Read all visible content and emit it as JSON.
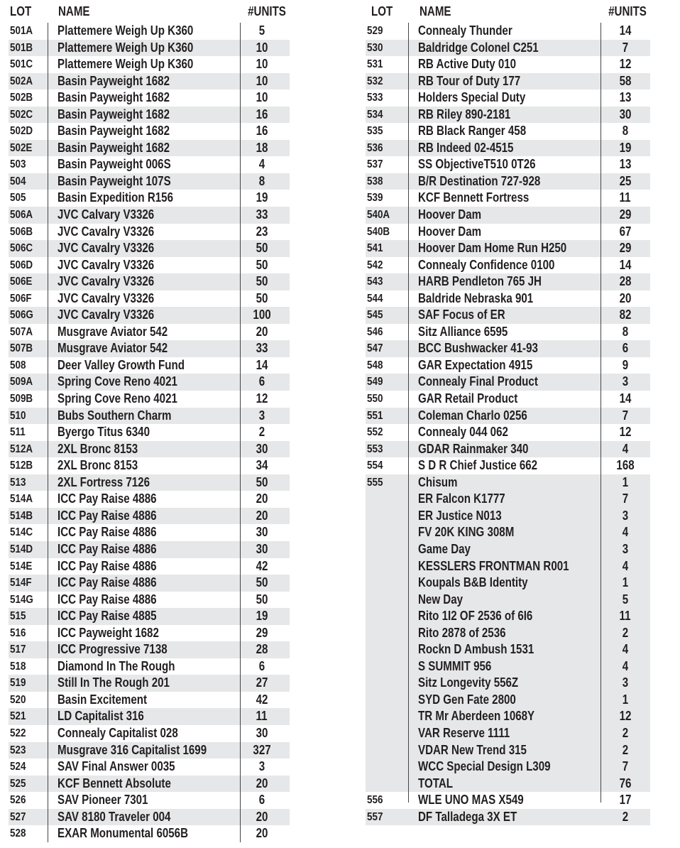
{
  "headers": {
    "lot": "LOT",
    "name": "NAME",
    "units": "#UNITS"
  },
  "left": {
    "rows": [
      {
        "lot": "501A",
        "name": "Plattemere Weigh Up K360",
        "units": "5"
      },
      {
        "lot": "501B",
        "name": "Plattemere Weigh Up K360",
        "units": "10"
      },
      {
        "lot": "501C",
        "name": "Plattemere Weigh Up K360",
        "units": "10"
      },
      {
        "lot": "502A",
        "name": "Basin Payweight 1682",
        "units": "10"
      },
      {
        "lot": "502B",
        "name": "Basin Payweight 1682",
        "units": "10"
      },
      {
        "lot": "502C",
        "name": "Basin Payweight 1682",
        "units": "16"
      },
      {
        "lot": "502D",
        "name": "Basin Payweight 1682",
        "units": "16"
      },
      {
        "lot": "502E",
        "name": "Basin Payweight 1682",
        "units": "18"
      },
      {
        "lot": "503",
        "name": "Basin Payweight 006S",
        "units": "4"
      },
      {
        "lot": "504",
        "name": "Basin Payweight 107S",
        "units": "8"
      },
      {
        "lot": "505",
        "name": "Basin Expedition R156",
        "units": "19"
      },
      {
        "lot": "506A",
        "name": "JVC Calvary V3326",
        "units": "33"
      },
      {
        "lot": "506B",
        "name": "JVC Cavalry V3326",
        "units": "23"
      },
      {
        "lot": "506C",
        "name": "JVC Cavalry V3326",
        "units": "50"
      },
      {
        "lot": "506D",
        "name": "JVC Cavalry V3326",
        "units": "50"
      },
      {
        "lot": "506E",
        "name": "JVC Cavalry V3326",
        "units": "50"
      },
      {
        "lot": "506F",
        "name": "JVC Cavalry V3326",
        "units": "50"
      },
      {
        "lot": "506G",
        "name": "JVC Cavalry V3326",
        "units": "100"
      },
      {
        "lot": "507A",
        "name": "Musgrave Aviator 542",
        "units": "20"
      },
      {
        "lot": "507B",
        "name": "Musgrave Aviator 542",
        "units": "33"
      },
      {
        "lot": "508",
        "name": "Deer Valley Growth Fund",
        "units": "14"
      },
      {
        "lot": "509A",
        "name": "Spring Cove Reno 4021",
        "units": "6"
      },
      {
        "lot": "509B",
        "name": "Spring Cove Reno 4021",
        "units": "12"
      },
      {
        "lot": "510",
        "name": "Bubs Southern Charm",
        "units": "3"
      },
      {
        "lot": "511",
        "name": "Byergo Titus 6340",
        "units": "2"
      },
      {
        "lot": "512A",
        "name": "2XL Bronc 8153",
        "units": "30"
      },
      {
        "lot": "512B",
        "name": "2XL Bronc 8153",
        "units": "34"
      },
      {
        "lot": "513",
        "name": "2XL Fortress 7126",
        "units": "50"
      },
      {
        "lot": "514A",
        "name": "ICC Pay Raise 4886",
        "units": "20"
      },
      {
        "lot": "514B",
        "name": "ICC Pay Raise 4886",
        "units": "20"
      },
      {
        "lot": "514C",
        "name": "ICC Pay Raise 4886",
        "units": "30"
      },
      {
        "lot": "514D",
        "name": "ICC Pay Raise 4886",
        "units": "30"
      },
      {
        "lot": "514E",
        "name": "ICC Pay Raise 4886",
        "units": "42"
      },
      {
        "lot": "514F",
        "name": "ICC Pay Raise 4886",
        "units": "50"
      },
      {
        "lot": "514G",
        "name": "ICC Pay Raise 4886",
        "units": "50"
      },
      {
        "lot": "515",
        "name": "ICC Pay Raise 4885",
        "units": "19"
      },
      {
        "lot": "516",
        "name": "ICC Payweight 1682",
        "units": "29"
      },
      {
        "lot": "517",
        "name": "ICC Progressive 7138",
        "units": "28"
      },
      {
        "lot": "518",
        "name": "Diamond In The Rough",
        "units": "6"
      },
      {
        "lot": "519",
        "name": "Still In The Rough 201",
        "units": "27"
      },
      {
        "lot": "520",
        "name": "Basin Excitement",
        "units": "42"
      },
      {
        "lot": "521",
        "name": "LD Capitalist 316",
        "units": "11"
      },
      {
        "lot": "522",
        "name": "Connealy Capitalist 028",
        "units": "30"
      },
      {
        "lot": "523",
        "name": "Musgrave 316 Capitalist 1699",
        "units": "327"
      },
      {
        "lot": "524",
        "name": "SAV Final Answer 0035",
        "units": "3"
      },
      {
        "lot": "525",
        "name": "KCF Bennett Absolute",
        "units": "20"
      },
      {
        "lot": "526",
        "name": "SAV Pioneer 7301",
        "units": "6"
      },
      {
        "lot": "527",
        "name": "SAV 8180 Traveler 004",
        "units": "20"
      },
      {
        "lot": "528",
        "name": "EXAR Monumental 6056B",
        "units": "20"
      }
    ]
  },
  "right": {
    "rows": [
      {
        "lot": "529",
        "name": "Connealy Thunder",
        "units": "14"
      },
      {
        "lot": "530",
        "name": "Baldridge Colonel C251",
        "units": "7"
      },
      {
        "lot": "531",
        "name": "RB Active Duty 010",
        "units": "12"
      },
      {
        "lot": "532",
        "name": "RB Tour of Duty 177",
        "units": "58"
      },
      {
        "lot": "533",
        "name": "Holders Special Duty",
        "units": "13"
      },
      {
        "lot": "534",
        "name": "RB Riley 890-2181",
        "units": "30"
      },
      {
        "lot": "535",
        "name": "RB Black Ranger 458",
        "units": "8"
      },
      {
        "lot": "536",
        "name": "RB Indeed 02-4515",
        "units": "19"
      },
      {
        "lot": "537",
        "name": "SS ObjectiveT510 0T26",
        "units": "13"
      },
      {
        "lot": "538",
        "name": "B/R Destination 727-928",
        "units": "25"
      },
      {
        "lot": "539",
        "name": "KCF Bennett Fortress",
        "units": "11"
      },
      {
        "lot": "540A",
        "name": "Hoover Dam",
        "units": "29"
      },
      {
        "lot": "540B",
        "name": "Hoover Dam",
        "units": "67"
      },
      {
        "lot": "541",
        "name": "Hoover Dam Home Run H250",
        "units": "29"
      },
      {
        "lot": "542",
        "name": "Connealy Confidence 0100",
        "units": "14"
      },
      {
        "lot": "543",
        "name": "HARB Pendleton 765 JH",
        "units": "28"
      },
      {
        "lot": "544",
        "name": "Baldride Nebraska 901",
        "units": "20"
      },
      {
        "lot": "545",
        "name": "SAF Focus of ER",
        "units": "82"
      },
      {
        "lot": "546",
        "name": "Sitz Alliance 6595",
        "units": "8"
      },
      {
        "lot": "547",
        "name": "BCC Bushwacker 41-93",
        "units": "6"
      },
      {
        "lot": "548",
        "name": "GAR Expectation 4915",
        "units": "9"
      },
      {
        "lot": "549",
        "name": "Connealy Final Product",
        "units": "3"
      },
      {
        "lot": "550",
        "name": "GAR Retail Product",
        "units": "14"
      },
      {
        "lot": "551",
        "name": "Coleman Charlo 0256",
        "units": "7"
      },
      {
        "lot": "552",
        "name": "Connealy 044 062",
        "units": "12"
      },
      {
        "lot": "553",
        "name": "GDAR Rainmaker 340",
        "units": "4"
      },
      {
        "lot": "554",
        "name": "S D R Chief Justice 662",
        "units": "168"
      },
      {
        "lot": "555",
        "name": "Chisum",
        "units": "1"
      },
      {
        "lot": "",
        "name": "ER Falcon K1777",
        "units": "7"
      },
      {
        "lot": "",
        "name": "ER Justice N013",
        "units": "3"
      },
      {
        "lot": "",
        "name": "FV 20K KING 308M",
        "units": "4"
      },
      {
        "lot": "",
        "name": "Game Day",
        "units": "3"
      },
      {
        "lot": "",
        "name": "KESSLERS FRONTMAN R001",
        "units": "4"
      },
      {
        "lot": "",
        "name": "Koupals B&B Identity",
        "units": "1"
      },
      {
        "lot": "",
        "name": "New Day",
        "units": "5"
      },
      {
        "lot": "",
        "name": "Rito 1I2 OF 2536 of 6I6",
        "units": "11"
      },
      {
        "lot": "",
        "name": "Rito 2878 of 2536",
        "units": "2"
      },
      {
        "lot": "",
        "name": "Rockn D Ambush 1531",
        "units": "4"
      },
      {
        "lot": "",
        "name": "S SUMMIT 956",
        "units": "4"
      },
      {
        "lot": "",
        "name": "Sitz Longevity 556Z",
        "units": "3"
      },
      {
        "lot": "",
        "name": "SYD Gen Fate 2800",
        "units": "1"
      },
      {
        "lot": "",
        "name": "TR Mr Aberdeen 1068Y",
        "units": "12"
      },
      {
        "lot": "",
        "name": "VAR Reserve 1111",
        "units": "2"
      },
      {
        "lot": "",
        "name": "VDAR New Trend 315",
        "units": "2"
      },
      {
        "lot": "",
        "name": "WCC Special Design L309",
        "units": "7"
      },
      {
        "lot": "",
        "name": "TOTAL",
        "units": "76"
      },
      {
        "lot": "556",
        "name": "WLE UNO MAS X549",
        "units": "17"
      },
      {
        "lot": "557",
        "name": "DF Talladega 3X ET",
        "units": "2"
      }
    ]
  },
  "colors": {
    "shade": "#e6e7e8",
    "text": "#231f20",
    "rule": "#444444"
  }
}
